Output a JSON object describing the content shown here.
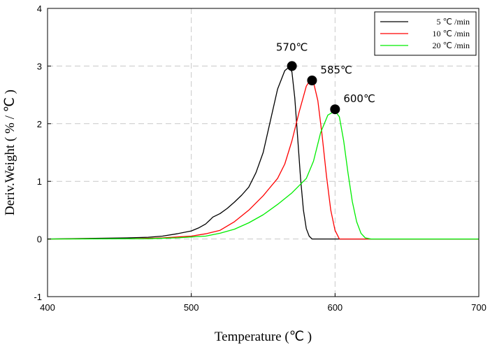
{
  "chart_data": {
    "type": "line",
    "title": "",
    "xlabel": "Temperature (℃ )",
    "ylabel": "Deriv.Weight ( % / ℃ )",
    "xlim": [
      400,
      700
    ],
    "ylim": [
      -1,
      4
    ],
    "x_ticks": [
      "400",
      "500",
      "600",
      "700"
    ],
    "y_ticks": [
      "-1",
      "0",
      "1",
      "2",
      "3",
      "4"
    ],
    "grid": true,
    "legend_position": "top-right",
    "series": [
      {
        "name": "5 ℃ /min",
        "color": "#000000",
        "x": [
          400,
          455,
          470,
          480,
          490,
          500,
          505,
          510,
          513,
          515,
          520,
          525,
          530,
          535,
          540,
          545,
          550,
          555,
          560,
          565,
          568,
          570,
          572,
          574,
          576,
          578,
          580,
          582,
          584,
          600,
          700
        ],
        "y": [
          0,
          0.02,
          0.03,
          0.05,
          0.09,
          0.14,
          0.19,
          0.26,
          0.33,
          0.38,
          0.44,
          0.53,
          0.64,
          0.76,
          0.9,
          1.15,
          1.5,
          2.05,
          2.6,
          2.92,
          2.98,
          2.9,
          2.45,
          1.75,
          1.05,
          0.5,
          0.18,
          0.05,
          0,
          0,
          0
        ]
      },
      {
        "name": "10 ℃ /min",
        "color": "#ff0000",
        "x": [
          400,
          460,
          480,
          500,
          510,
          520,
          530,
          540,
          550,
          560,
          565,
          570,
          575,
          580,
          583,
          585,
          588,
          591,
          594,
          597,
          600,
          603,
          610,
          700
        ],
        "y": [
          0,
          0.005,
          0.02,
          0.05,
          0.09,
          0.15,
          0.3,
          0.5,
          0.75,
          1.05,
          1.3,
          1.7,
          2.2,
          2.65,
          2.77,
          2.72,
          2.4,
          1.8,
          1.1,
          0.5,
          0.15,
          0,
          0,
          0
        ]
      },
      {
        "name": "20 ℃ /min",
        "color": "#00ee00",
        "x": [
          400,
          470,
          490,
          510,
          520,
          530,
          540,
          550,
          560,
          570,
          580,
          585,
          590,
          595,
          600,
          603,
          606,
          609,
          612,
          615,
          618,
          621,
          625,
          700
        ],
        "y": [
          0,
          0.005,
          0.02,
          0.05,
          0.1,
          0.17,
          0.28,
          0.42,
          0.6,
          0.8,
          1.05,
          1.35,
          1.85,
          2.15,
          2.22,
          2.12,
          1.7,
          1.15,
          0.65,
          0.3,
          0.1,
          0.02,
          0,
          0
        ]
      }
    ],
    "annotations": [
      {
        "label": "570℃",
        "x": 570,
        "y": 3.0
      },
      {
        "label": "585℃",
        "x": 584,
        "y": 2.75
      },
      {
        "label": "600℃",
        "x": 600,
        "y": 2.25
      }
    ]
  }
}
